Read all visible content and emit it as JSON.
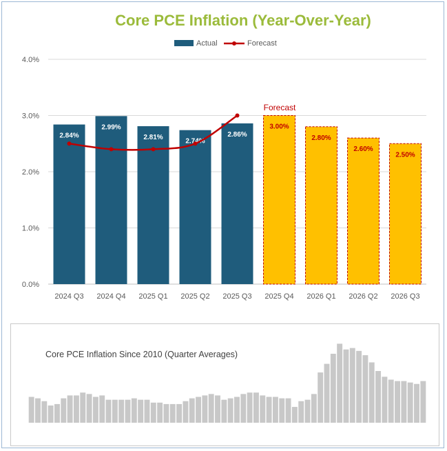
{
  "chart_data": [
    {
      "type": "bar",
      "title": "Core PCE Inflation (Year-Over-Year)",
      "categories": [
        "2024 Q3",
        "2024 Q4",
        "2025 Q1",
        "2025 Q2",
        "2025 Q3",
        "2025 Q4",
        "2026 Q1",
        "2026 Q2",
        "2026 Q3"
      ],
      "series": [
        {
          "name": "Actual",
          "kind": "bar",
          "color": "#1f5c7c",
          "values": [
            2.84,
            2.99,
            2.81,
            2.74,
            2.86,
            null,
            null,
            null,
            null
          ],
          "labels": [
            "2.84%",
            "2.99%",
            "2.81%",
            "2.74%",
            "2.86%",
            "",
            "",
            "",
            ""
          ]
        },
        {
          "name": "Forecast bars",
          "kind": "bar",
          "color": "#ffc000",
          "border_color": "#c00000",
          "values": [
            null,
            null,
            null,
            null,
            null,
            3.0,
            2.8,
            2.6,
            2.5
          ],
          "labels": [
            "",
            "",
            "",
            "",
            "",
            "3.00%",
            "2.80%",
            "2.60%",
            "2.50%"
          ]
        },
        {
          "name": "Forecast",
          "kind": "line",
          "color": "#c00000",
          "values": [
            2.5,
            2.4,
            2.4,
            2.5,
            3.0,
            null,
            null,
            null,
            null
          ]
        }
      ],
      "legend": [
        "Actual",
        "Forecast"
      ],
      "annotation": "Forecast",
      "yticks": [
        "0.0%",
        "1.0%",
        "2.0%",
        "3.0%",
        "4.0%"
      ],
      "ylim": [
        0,
        4
      ],
      "xlabel": "",
      "ylabel": "",
      "title_color": "#9bbb3b"
    },
    {
      "type": "bar",
      "title": "Core PCE Inflation Since 2010 (Quarter Averages)",
      "color": "#c8c8c8",
      "ylim": [
        0,
        6.0
      ],
      "values": [
        1.8,
        1.7,
        1.5,
        1.2,
        1.3,
        1.7,
        1.9,
        1.9,
        2.1,
        2.0,
        1.8,
        1.9,
        1.6,
        1.6,
        1.6,
        1.6,
        1.7,
        1.6,
        1.6,
        1.4,
        1.4,
        1.3,
        1.3,
        1.3,
        1.5,
        1.7,
        1.8,
        1.9,
        2.0,
        1.9,
        1.6,
        1.7,
        1.8,
        2.0,
        2.1,
        2.1,
        1.9,
        1.8,
        1.8,
        1.7,
        1.7,
        1.1,
        1.5,
        1.6,
        2.0,
        3.5,
        4.1,
        4.8,
        5.5,
        5.1,
        5.2,
        5.0,
        4.7,
        4.2,
        3.6,
        3.2,
        3.0,
        2.9,
        2.9,
        2.8,
        2.7,
        2.9
      ]
    }
  ]
}
